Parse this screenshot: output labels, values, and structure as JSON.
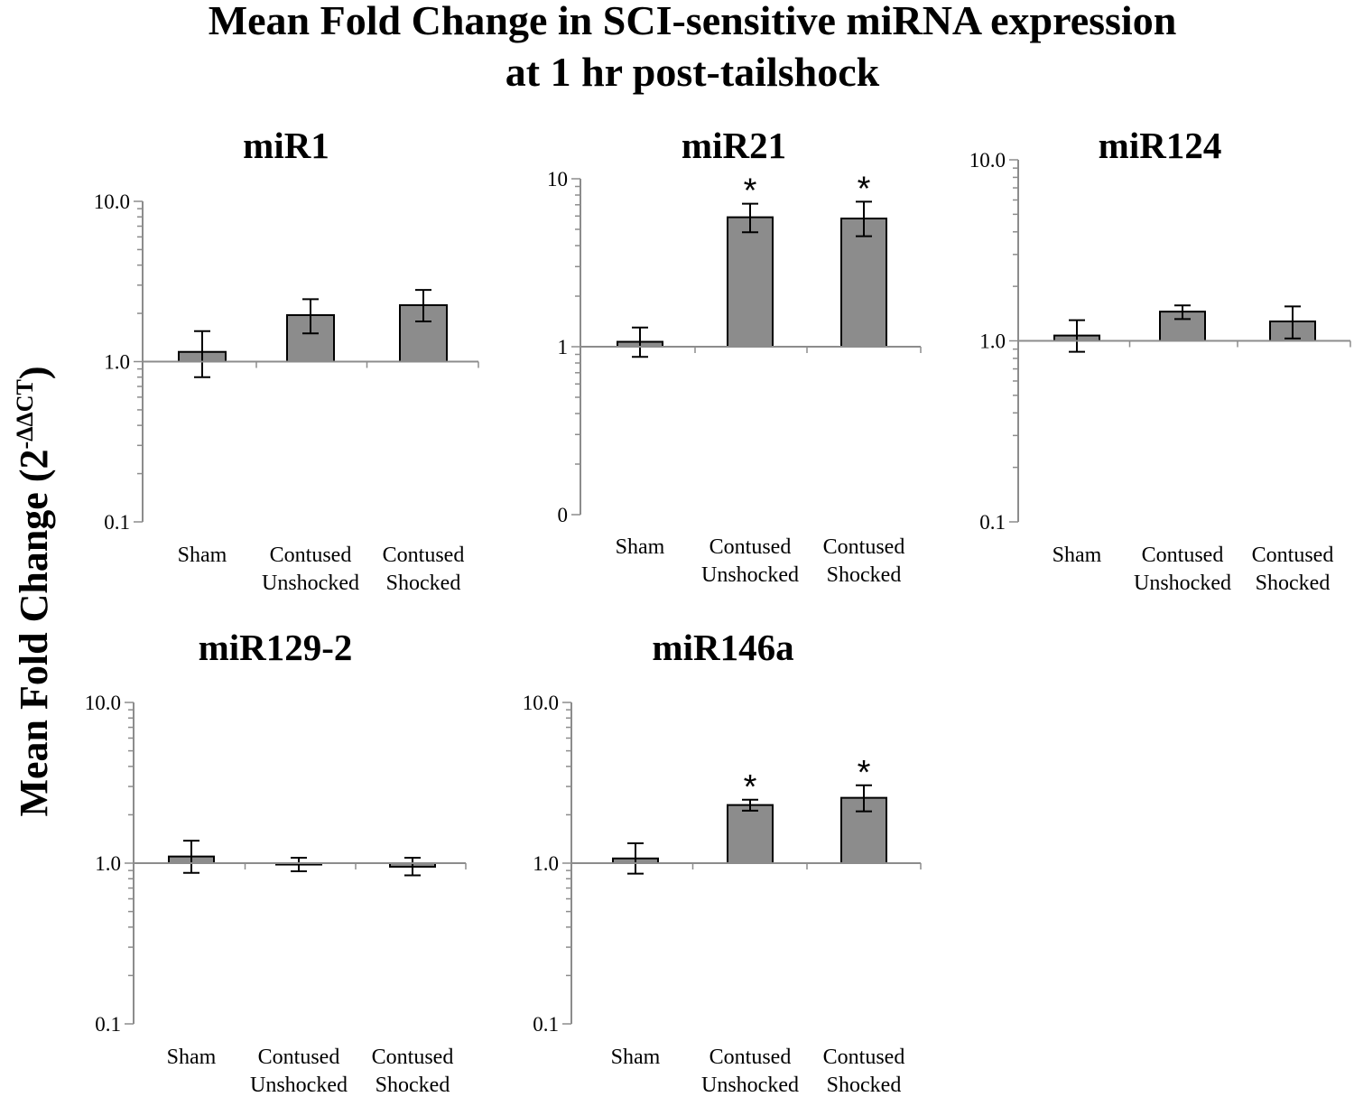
{
  "figure": {
    "title_line1": "Mean Fold Change in SCI-sensitive miRNA expression",
    "title_line2": "at 1 hr post-tailshock",
    "ylabel_main": "Mean Fold Change (2",
    "ylabel_sup": "-ΔΔCT",
    "ylabel_close": ")"
  },
  "colors": {
    "bar": "#8c8c8c",
    "axis": "#8c8c8c"
  },
  "chart_data": [
    {
      "type": "bar",
      "title": "miR1",
      "yscale": "log",
      "ylim": [
        0.1,
        10
      ],
      "yticks": [
        0.1,
        1,
        10
      ],
      "ytick_labels": [
        "0.1",
        "1.0",
        "10.0"
      ],
      "categories": [
        [
          "Sham"
        ],
        [
          "Contused",
          "Unshocked"
        ],
        [
          "Contused",
          "Shocked"
        ]
      ],
      "values": [
        1.15,
        1.95,
        2.25
      ],
      "err_low": [
        0.8,
        1.5,
        1.78
      ],
      "err_high": [
        1.55,
        2.45,
        2.8
      ],
      "significant": [
        false,
        false,
        false
      ]
    },
    {
      "type": "bar",
      "title": "miR21",
      "yscale": "log",
      "ylim": [
        0.1,
        10
      ],
      "yticks": [
        0.1,
        1,
        10
      ],
      "ytick_labels": [
        "0",
        "1",
        "10"
      ],
      "categories": [
        [
          "Sham"
        ],
        [
          "Contused",
          "Unshocked"
        ],
        [
          "Contused",
          "Shocked"
        ]
      ],
      "values": [
        1.07,
        5.9,
        5.8
      ],
      "err_low": [
        0.87,
        4.8,
        4.55
      ],
      "err_high": [
        1.3,
        7.1,
        7.3
      ],
      "significant": [
        false,
        true,
        true
      ],
      "marker": "*"
    },
    {
      "type": "bar",
      "title": "miR124",
      "yscale": "log",
      "ylim": [
        0.1,
        10
      ],
      "yticks": [
        0.1,
        1,
        10
      ],
      "ytick_labels": [
        "0.1",
        "1.0",
        "10.0"
      ],
      "categories": [
        [
          "Sham"
        ],
        [
          "Contused",
          "Unshocked"
        ],
        [
          "Contused",
          "Shocked"
        ]
      ],
      "values": [
        1.07,
        1.45,
        1.28
      ],
      "err_low": [
        0.87,
        1.32,
        1.03
      ],
      "err_high": [
        1.3,
        1.57,
        1.55
      ],
      "significant": [
        false,
        false,
        false
      ]
    },
    {
      "type": "bar",
      "title": "miR129-2",
      "yscale": "log",
      "ylim": [
        0.1,
        10
      ],
      "yticks": [
        0.1,
        1,
        10
      ],
      "ytick_labels": [
        "0.1",
        "1.0",
        "10.0"
      ],
      "categories": [
        [
          "Sham"
        ],
        [
          "Contused",
          "Unshocked"
        ],
        [
          "Contused",
          "Shocked"
        ]
      ],
      "values": [
        1.1,
        0.98,
        0.95
      ],
      "err_low": [
        0.87,
        0.89,
        0.84
      ],
      "err_high": [
        1.38,
        1.08,
        1.08
      ],
      "significant": [
        false,
        false,
        false
      ]
    },
    {
      "type": "bar",
      "title": "miR146a",
      "yscale": "log",
      "ylim": [
        0.1,
        10
      ],
      "yticks": [
        0.1,
        1,
        10
      ],
      "ytick_labels": [
        "0.1",
        "1.0",
        "10.0"
      ],
      "categories": [
        [
          "Sham"
        ],
        [
          "Contused",
          "Unshocked"
        ],
        [
          "Contused",
          "Shocked"
        ]
      ],
      "values": [
        1.07,
        2.3,
        2.55
      ],
      "err_low": [
        0.86,
        2.12,
        2.1
      ],
      "err_high": [
        1.33,
        2.48,
        3.05
      ],
      "significant": [
        false,
        true,
        true
      ],
      "marker": "*"
    }
  ]
}
